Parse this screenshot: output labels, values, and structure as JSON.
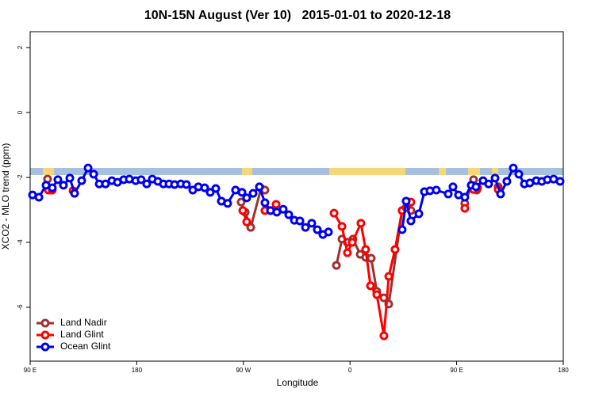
{
  "chart_data": {
    "type": "line",
    "title": "10N-15N August (Ver 10)   2015-01-01 to 2020-12-18",
    "xlabel": "Longitude",
    "ylabel": "XCO2 - MLO trend (ppm)",
    "xlim": [
      90,
      540
    ],
    "ylim": [
      -7.66,
      2.49
    ],
    "xticks": [
      {
        "value": 90,
        "label": "90 E"
      },
      {
        "value": 180,
        "label": "180"
      },
      {
        "value": 270,
        "label": "90 W"
      },
      {
        "value": 360,
        "label": "0"
      },
      {
        "value": 450,
        "label": "90 E"
      },
      {
        "value": 540,
        "label": "180"
      }
    ],
    "yticks": [
      2,
      0,
      -2,
      -4,
      -6
    ],
    "legend": "bottom-left",
    "series": [
      {
        "name": "Land Nadir",
        "color": "#a03030",
        "x": [
          104.7,
          107.4,
          180,
          268.1,
          271.5,
          276.2,
          284.9,
          288.2,
          320,
          348.5,
          353.2,
          357.8,
          362.5,
          368.6,
          373.2,
          377.9,
          382.6,
          388.6,
          392.7,
          404.0,
          411.4,
          430,
          456.9,
          464.3,
          467.0,
          475,
          485.1
        ],
        "values": [
          -2.05,
          -2.39,
          null,
          -2.76,
          -3.07,
          -3.54,
          -2.34,
          -2.39,
          null,
          -4.71,
          -3.9,
          -4.0,
          -3.9,
          -4.37,
          -4.46,
          -4.49,
          -5.51,
          -5.71,
          -5.9,
          -3.02,
          -3.02,
          null,
          -2.8,
          -2.07,
          -2.39,
          null,
          -2.29
        ]
      },
      {
        "name": "Land Glint",
        "color": "#ff0000",
        "x": [
          105.4,
          108.7,
          115,
          126.2,
          200,
          269.5,
          272.8,
          280,
          288.2,
          292.9,
          297.6,
          320,
          346.5,
          353.2,
          357.8,
          361.9,
          369.2,
          373.2,
          377.3,
          382.6,
          388.6,
          392.7,
          398.0,
          404.0,
          407.4,
          411.4,
          430,
          456.9,
          460,
          464.3,
          467.7,
          475,
          485.1
        ],
        "values": [
          -2.39,
          -2.39,
          null,
          -2.41,
          null,
          -3.02,
          -3.37,
          null,
          -3.02,
          -3.02,
          -2.83,
          null,
          -3.1,
          -3.51,
          -4.32,
          -4.0,
          -3.41,
          -4.22,
          -5.34,
          -5.61,
          -6.88,
          -5.05,
          -4.22,
          -3.02,
          -2.93,
          -2.76,
          null,
          -2.95,
          null,
          -2.37,
          -2.32,
          null,
          -2.37
        ]
      },
      {
        "name": "Ocean Glint",
        "color": "#0000ee",
        "x": [
          92.0,
          97.4,
          103.4,
          108.7,
          113.4,
          118.1,
          123.5,
          127.5,
          133.5,
          138.9,
          143.6,
          148.3,
          153.6,
          159.0,
          163.7,
          169.0,
          173.7,
          179.1,
          183.7,
          188.4,
          193.1,
          197.8,
          202.5,
          207.2,
          211.9,
          217.2,
          221.9,
          227.3,
          232.0,
          237.3,
          242.0,
          246.7,
          251.4,
          256.7,
          263.4,
          268.8,
          272.8,
          278.2,
          283.5,
          288.2,
          292.9,
          298.2,
          303.6,
          308.3,
          313.0,
          317.7,
          322.4,
          327.7,
          332.4,
          337.1,
          341.8,
          375,
          404.0,
          407.4,
          411.4,
          418.1,
          422.8,
          427.5,
          432.8,
          442.9,
          446.9,
          451.6,
          456.9,
          462.3,
          466.3,
          472.3,
          477.0,
          482.4,
          487.1,
          492.4,
          497.8,
          502.5,
          507.2,
          511.8,
          517.2,
          521.9,
          526.6,
          531.9,
          537.3
        ],
        "values": [
          -2.54,
          -2.61,
          -2.24,
          -2.32,
          -2.07,
          -2.24,
          -2.02,
          -2.49,
          -2.1,
          -1.71,
          -1.9,
          -2.2,
          -2.2,
          -2.1,
          -2.15,
          -2.07,
          -2.05,
          -2.1,
          -2.07,
          -2.2,
          -2.05,
          -2.12,
          -2.2,
          -2.2,
          -2.22,
          -2.2,
          -2.22,
          -2.39,
          -2.29,
          -2.32,
          -2.46,
          -2.34,
          -2.73,
          -2.8,
          -2.39,
          -2.46,
          -2.63,
          -2.49,
          -2.29,
          -2.78,
          -3.02,
          -3.07,
          -2.98,
          -3.15,
          -3.32,
          -3.34,
          -3.54,
          -3.41,
          -3.61,
          -3.76,
          -3.68,
          null,
          -3.61,
          -2.73,
          -3.34,
          -3.12,
          -2.44,
          -2.41,
          -2.39,
          -2.51,
          -2.29,
          -2.54,
          -2.61,
          -2.24,
          -2.29,
          -2.1,
          -2.2,
          -2.02,
          -2.51,
          -2.12,
          -1.71,
          -1.9,
          -2.2,
          -2.17,
          -2.1,
          -2.12,
          -2.07,
          -2.05,
          -2.12
        ]
      }
    ]
  }
}
